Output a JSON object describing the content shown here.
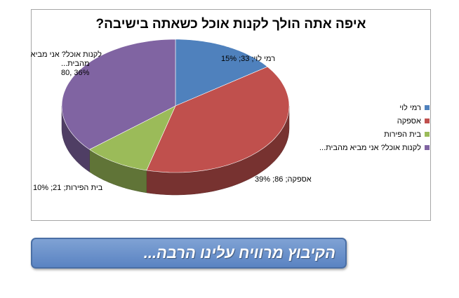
{
  "chart_data": {
    "type": "pie",
    "title": "איפה אתה הולך לקנות אוכל כשאתה בישיבה?",
    "legend_position": "right",
    "slices": [
      {
        "name": "רמי לוי",
        "value": 33,
        "percent": 15,
        "color": "#4f81bd",
        "label": "רמי לוי; 33; 15%"
      },
      {
        "name": "אספקה",
        "value": 86,
        "percent": 39,
        "color": "#c0504d",
        "label": "אספקה; 86; 39%"
      },
      {
        "name": "בית הפירות",
        "value": 21,
        "percent": 10,
        "color": "#9bbb59",
        "label": "בית הפירות; 21; 10%"
      },
      {
        "name": "לקנות אוכל? אני מביא מהבית...",
        "value": 80,
        "percent": 36,
        "color": "#8064a2",
        "label_lines": [
          "לקנות אוכל? אני מביא",
          "מהבית...",
          "36% ,80"
        ]
      }
    ],
    "legend": [
      "רמי לוי",
      "אספקה",
      "בית הפירות",
      "לקנות אוכל? אני מביא מהבית..."
    ]
  },
  "banner": {
    "text": "הקיבוץ מרוויח עלינו הרבה..."
  }
}
